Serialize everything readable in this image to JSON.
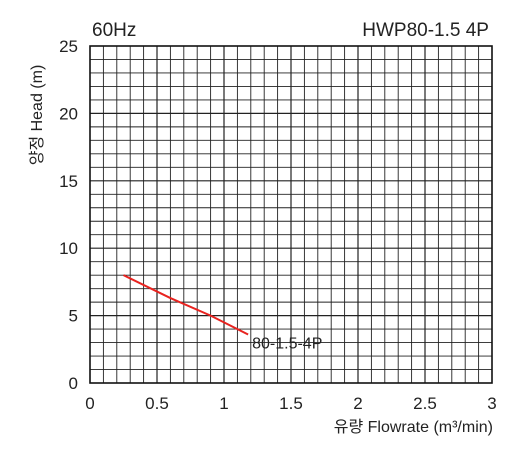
{
  "header": {
    "frequency": "60Hz",
    "model": "HWP80-1.5 4P"
  },
  "chart_data": {
    "type": "line",
    "title": "",
    "xlabel": "유량 Flowrate (m³/min)",
    "ylabel": "양정 Head (m)",
    "xlim": [
      0,
      3
    ],
    "ylim": [
      0,
      25
    ],
    "grid": true,
    "x_ticks": [
      "0",
      "0.5",
      "1",
      "1.5",
      "2",
      "2.5",
      "3"
    ],
    "y_ticks": [
      "0",
      "5",
      "10",
      "15",
      "20",
      "25"
    ],
    "series": [
      {
        "name": "80-1.5-4P",
        "color": "#e8231f",
        "x": [
          0.25,
          0.6,
          0.9,
          1.18
        ],
        "y": [
          8.0,
          6.3,
          5.0,
          3.6
        ]
      }
    ]
  }
}
